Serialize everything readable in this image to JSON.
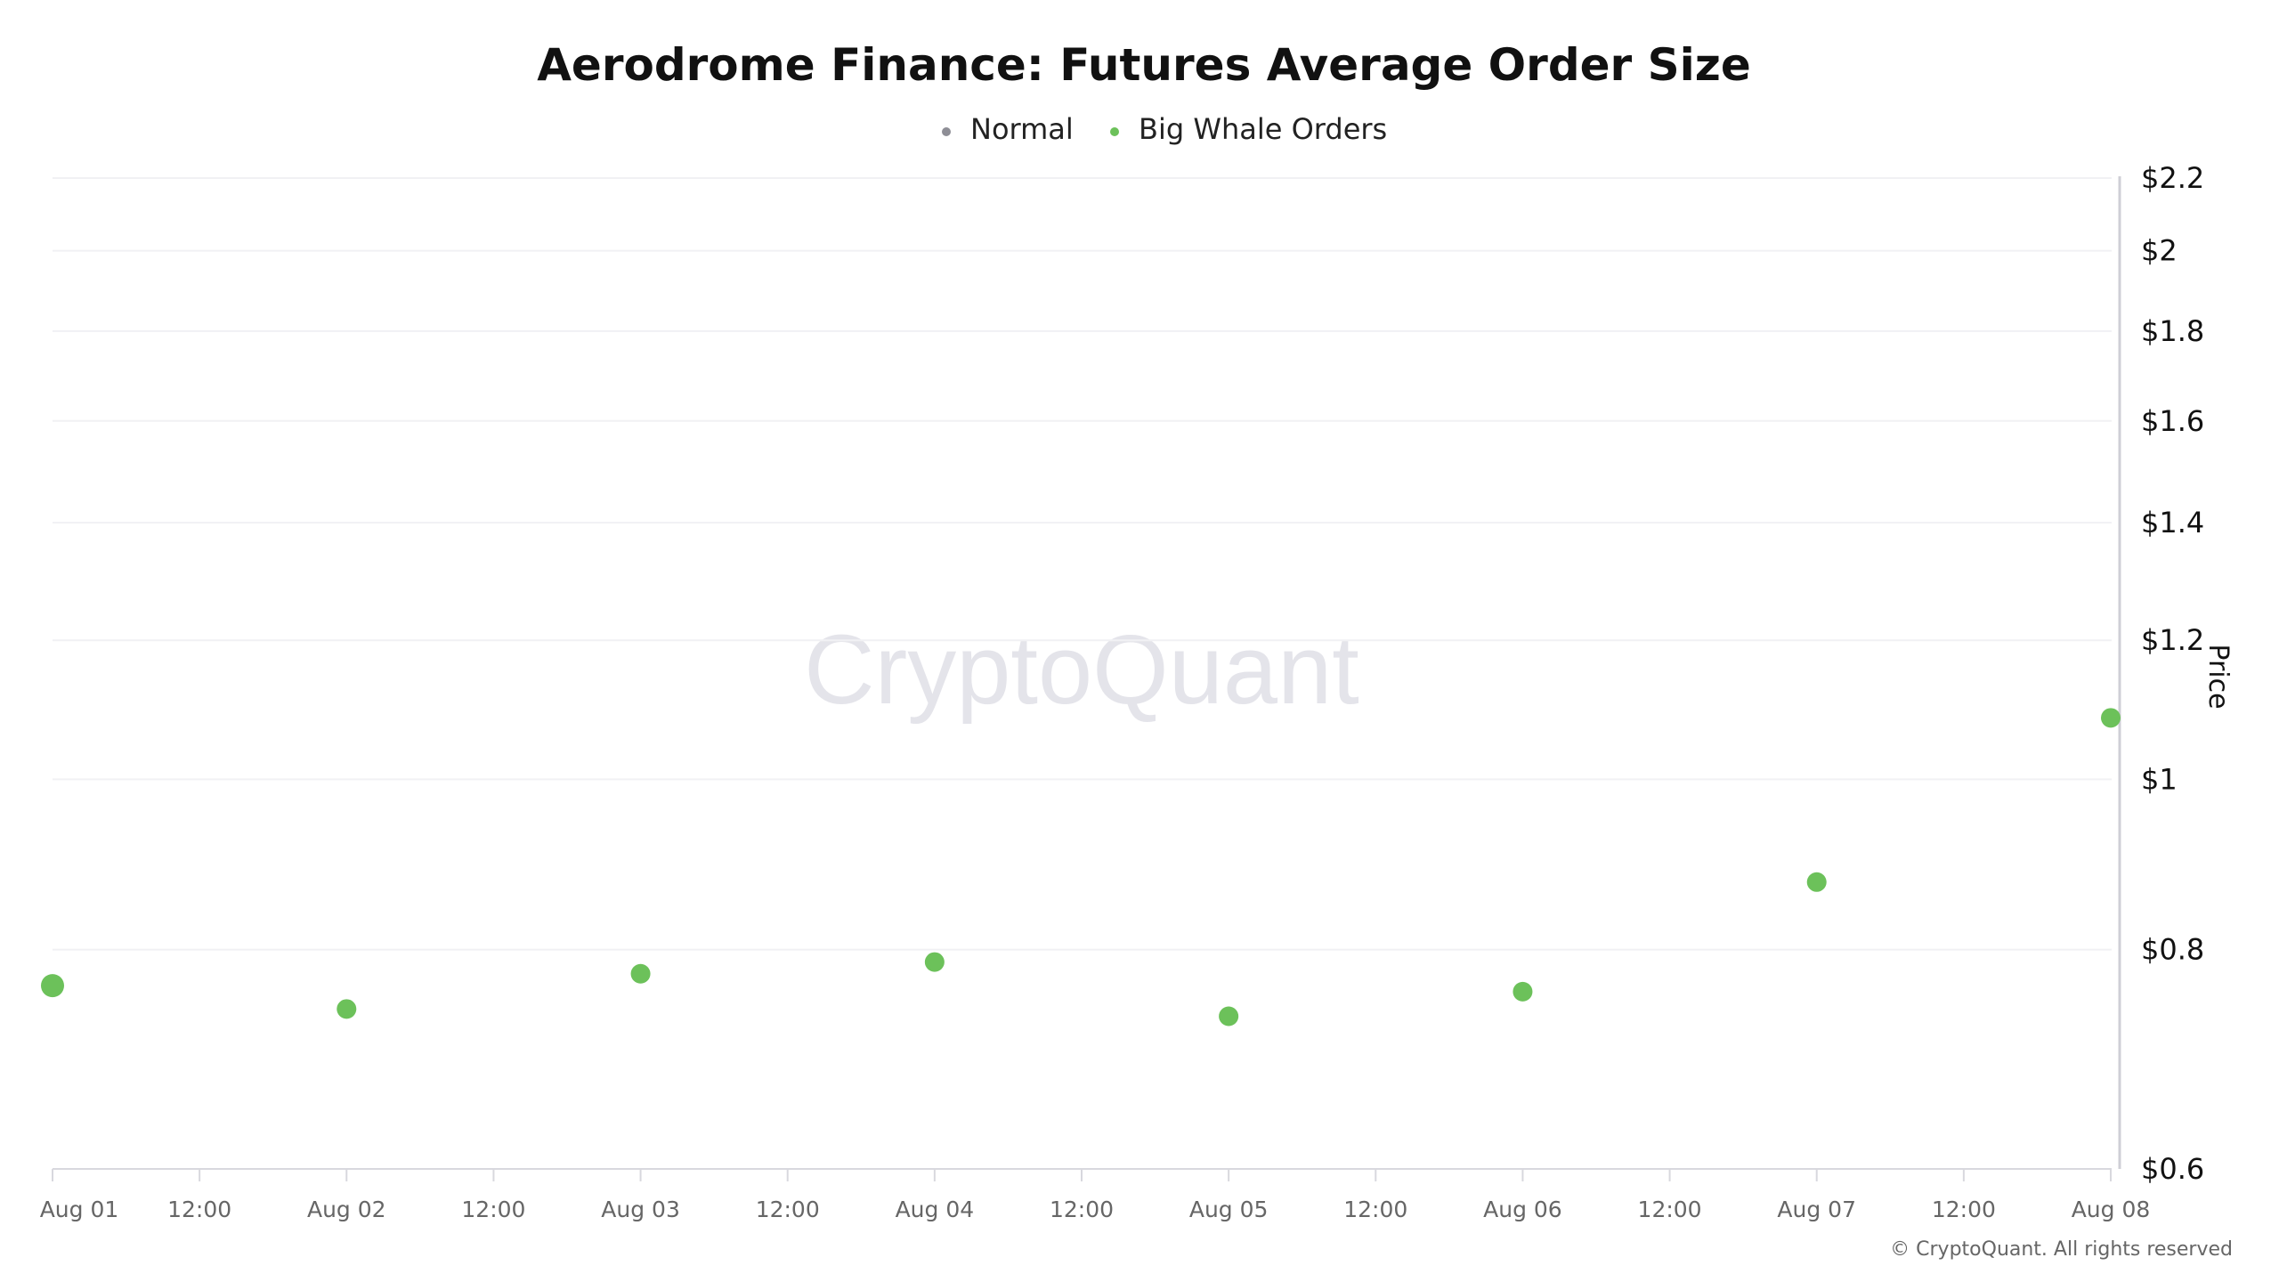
{
  "chart_data": {
    "type": "scatter",
    "title": "Aerodrome Finance: Futures Average Order Size",
    "legend": [
      {
        "name": "Normal",
        "color": "#8e8e96"
      },
      {
        "name": "Big Whale Orders",
        "color": "#6cc15a"
      }
    ],
    "legend_position": "top-center",
    "ylabel": "Price",
    "yscale": "log",
    "ylim": [
      0.6,
      2.2
    ],
    "yticks": [
      0.6,
      0.8,
      1,
      1.2,
      1.4,
      1.6,
      1.8,
      2,
      2.2
    ],
    "ytick_labels": [
      "$0.6",
      "$0.8",
      "$1",
      "$1.2",
      "$1.4",
      "$1.6",
      "$1.8",
      "$2",
      "$2.2"
    ],
    "xticks": [
      "Aug 01",
      "12:00",
      "Aug 02",
      "12:00",
      "Aug 03",
      "12:00",
      "Aug 04",
      "12:00",
      "Aug 05",
      "12:00",
      "Aug 06",
      "12:00",
      "Aug 07",
      "12:00",
      "Aug 08"
    ],
    "grid": true,
    "series": [
      {
        "name": "Big Whale Orders",
        "color": "#6cc15a",
        "x": [
          "Aug 01",
          "Aug 02",
          "Aug 03",
          "Aug 04",
          "Aug 05",
          "Aug 06",
          "Aug 07",
          "Aug 08"
        ],
        "values": [
          0.763,
          0.74,
          0.775,
          0.787,
          0.733,
          0.757,
          0.874,
          1.084
        ]
      }
    ]
  },
  "watermark": "CryptoQuant",
  "credit": "© CryptoQuant. All rights reserved"
}
